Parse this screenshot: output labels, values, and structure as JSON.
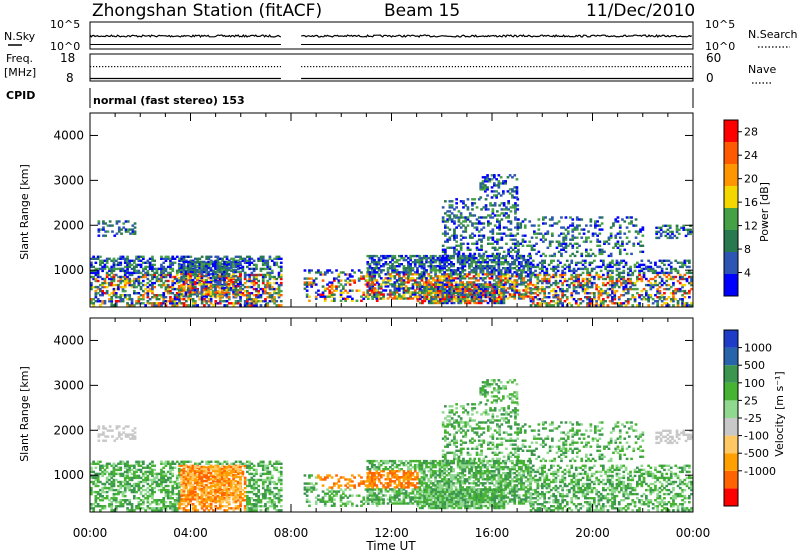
{
  "header": {
    "station": "Zhongshan Station (fitACF)",
    "beam": "Beam 15",
    "date": "11/Dec/2010"
  },
  "status_panels": {
    "nsky_label": "N.Sky",
    "nsky_ticks": [
      "10^5",
      "10^0"
    ],
    "nsearch_label": "N.Search",
    "nsearch_ticks": [
      "10^5",
      "10^0"
    ],
    "freq_label": "Freq.",
    "freq_unit": "[MHz]",
    "freq_ticks": [
      "18",
      "8"
    ],
    "nave_label": "Nave",
    "nave_ticks": [
      "60",
      "0"
    ],
    "cpid_label": "CPID",
    "cpid_value": "normal (fast stereo) 153"
  },
  "colors": {
    "power_scale": [
      "#0000ff",
      "#2d55b4",
      "#287850",
      "#46a046",
      "#f5d700",
      "#ff9600",
      "#ff5a00",
      "#ff0000"
    ],
    "velocity_scale": [
      "#ff0000",
      "#ff6400",
      "#ffa000",
      "#ffc864",
      "#c8c8c8",
      "#90d890",
      "#46b432",
      "#3c9650",
      "#2864aa",
      "#1e3cc8"
    ],
    "ground_scatter": "#c8c8c8"
  },
  "chart_data": [
    {
      "type": "heatmap",
      "panel": "power",
      "ylabel": "Slant Range [km]",
      "xlabel": "Time UT",
      "x_ticks": [
        "00:00",
        "04:00",
        "08:00",
        "12:00",
        "16:00",
        "20:00",
        "00:00"
      ],
      "y_ticks": [
        "1000",
        "2000",
        "3000",
        "4000"
      ],
      "xlim_hours": [
        0,
        24
      ],
      "ylim_km": [
        180,
        4500
      ],
      "data_gap_hours": [
        7.6,
        8.4
      ],
      "colorbar": {
        "label": "Power [dB]",
        "ticks": [
          "4",
          "8",
          "12",
          "16",
          "20",
          "24",
          "28"
        ],
        "range": [
          0,
          30
        ]
      }
    },
    {
      "type": "heatmap",
      "panel": "velocity",
      "ylabel": "Slant Range [km]",
      "xlabel": "Time UT",
      "x_ticks": [
        "00:00",
        "04:00",
        "08:00",
        "12:00",
        "16:00",
        "20:00",
        "00:00"
      ],
      "y_ticks": [
        "1000",
        "2000",
        "3000",
        "4000"
      ],
      "xlim_hours": [
        0,
        24
      ],
      "ylim_km": [
        180,
        4500
      ],
      "data_gap_hours": [
        7.6,
        8.4
      ],
      "colorbar": {
        "label": "Velocity [m s⁻¹]",
        "ticks": [
          "1000",
          "500",
          "100",
          "25",
          "-25",
          "-100",
          "-500",
          "-1000"
        ]
      }
    }
  ]
}
